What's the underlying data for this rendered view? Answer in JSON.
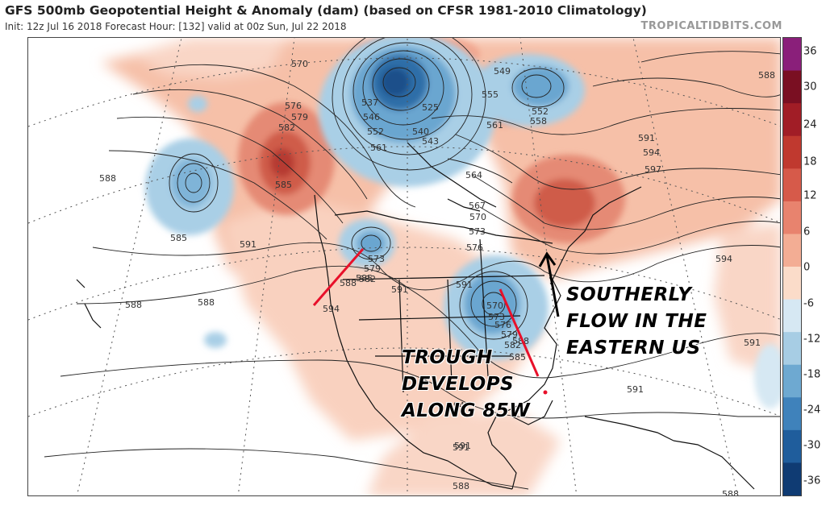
{
  "header": {
    "title": "GFS 500mb Geopotential Height & Anomaly (dam) (based on CFSR 1981-2010 Climatology)",
    "subtitle": "Init: 12z Jul 16 2018   Forecast Hour: [132]   valid at 00z Sun, Jul 22 2018",
    "brand": "TROPICALTIDBITS.COM"
  },
  "colorbar": {
    "ticks": [
      "36",
      "30",
      "24",
      "18",
      "12",
      "6",
      "0",
      "-6",
      "-12",
      "-18",
      "-24",
      "-30",
      "-36"
    ],
    "colors": [
      "#8a1f7a",
      "#7a0f22",
      "#a11d26",
      "#c0392f",
      "#d65a4a",
      "#e8836e",
      "#f3ad94",
      "#fbdcc9",
      "#d6e8f3",
      "#a7cde4",
      "#6ea9d1",
      "#3f82bb",
      "#1f5d9c",
      "#0f3b73"
    ]
  },
  "contour_labels": [
    "570",
    "576",
    "579",
    "582",
    "585",
    "588",
    "585",
    "591",
    "537",
    "546",
    "525",
    "540",
    "552",
    "561",
    "543",
    "549",
    "555",
    "552",
    "558",
    "561",
    "564",
    "567",
    "570",
    "573",
    "576",
    "591",
    "594",
    "597",
    "588",
    "594",
    "591",
    "570",
    "573",
    "579",
    "582",
    "585",
    "588",
    "591",
    "573",
    "576",
    "579",
    "582",
    "585",
    "588",
    "591",
    "594",
    "591",
    "591",
    "588",
    "588",
    "594",
    "591",
    "588",
    "588"
  ],
  "annotations": {
    "southerly_flow": [
      "SOUTHERLY",
      "FLOW IN THE",
      "EASTERN US"
    ],
    "trough": [
      "TROUGH",
      "DEVELOPS",
      "ALONG 85W"
    ]
  }
}
